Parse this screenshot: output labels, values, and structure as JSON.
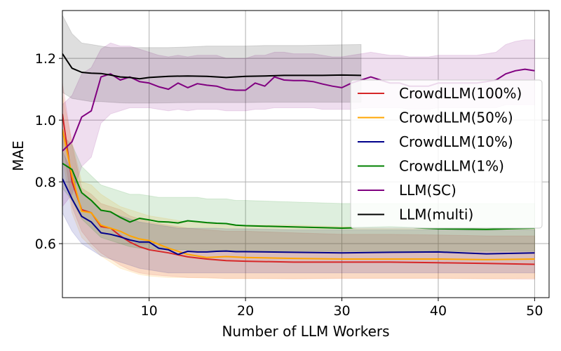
{
  "chart_data": {
    "type": "line",
    "title": "",
    "xlabel": "Number of LLM Workers",
    "ylabel": "MAE",
    "xlim": [
      1,
      51.5
    ],
    "ylim": [
      0.425,
      1.355
    ],
    "xticks": [
      10,
      20,
      30,
      40,
      50
    ],
    "yticks": [
      0.6,
      0.8,
      1.0,
      1.2
    ],
    "xtick_labels": [
      "10",
      "20",
      "30",
      "40",
      "50"
    ],
    "ytick_labels": [
      "0.6",
      "0.8",
      "1.0",
      "1.2"
    ],
    "grid": true,
    "legend_position": "center-right",
    "series": [
      {
        "name": "CrowdLLM(100%)",
        "color": "#d62728",
        "x": [
          1,
          2,
          3,
          4,
          5,
          6,
          7,
          8,
          9,
          10,
          12,
          14,
          16,
          18,
          20,
          25,
          30,
          35,
          40,
          45,
          50
        ],
        "values": [
          1.02,
          0.8,
          0.71,
          0.7,
          0.655,
          0.65,
          0.625,
          0.605,
          0.59,
          0.58,
          0.57,
          0.557,
          0.55,
          0.545,
          0.543,
          0.54,
          0.54,
          0.54,
          0.538,
          0.536,
          0.533
        ],
        "lower": [
          0.94,
          0.72,
          0.64,
          0.6,
          0.57,
          0.55,
          0.53,
          0.515,
          0.505,
          0.5,
          0.495,
          0.49,
          0.49,
          0.487,
          0.487,
          0.486,
          0.487,
          0.487,
          0.487,
          0.486,
          0.485
        ],
        "upper": [
          1.12,
          0.92,
          0.78,
          0.76,
          0.73,
          0.72,
          0.71,
          0.69,
          0.68,
          0.67,
          0.66,
          0.65,
          0.645,
          0.64,
          0.64,
          0.635,
          0.63,
          0.63,
          0.628,
          0.625,
          0.625
        ]
      },
      {
        "name": "CrowdLLM(50%)",
        "color": "#ffa500",
        "x": [
          1,
          2,
          3,
          4,
          5,
          6,
          7,
          8,
          9,
          10,
          12,
          14,
          16,
          18,
          20,
          25,
          30,
          35,
          40,
          45,
          50
        ],
        "values": [
          0.97,
          0.82,
          0.705,
          0.7,
          0.66,
          0.65,
          0.64,
          0.625,
          0.615,
          0.61,
          0.585,
          0.565,
          0.555,
          0.558,
          0.555,
          0.552,
          0.55,
          0.55,
          0.55,
          0.548,
          0.55
        ],
        "lower": [
          0.88,
          0.7,
          0.62,
          0.59,
          0.56,
          0.54,
          0.52,
          0.51,
          0.5,
          0.495,
          0.49,
          0.49,
          0.488,
          0.487,
          0.487,
          0.487,
          0.488,
          0.488,
          0.488,
          0.487,
          0.488
        ],
        "upper": [
          1.08,
          0.93,
          0.8,
          0.79,
          0.76,
          0.74,
          0.72,
          0.71,
          0.7,
          0.69,
          0.68,
          0.67,
          0.665,
          0.66,
          0.66,
          0.66,
          0.655,
          0.65,
          0.65,
          0.648,
          0.648
        ]
      },
      {
        "name": "CrowdLLM(10%)",
        "color": "#00008b",
        "x": [
          1,
          2,
          3,
          4,
          5,
          6,
          7,
          8,
          9,
          10,
          11,
          12,
          13,
          14,
          15,
          16,
          17,
          18,
          19,
          20,
          25,
          30,
          35,
          40,
          45,
          50
        ],
        "values": [
          0.81,
          0.745,
          0.688,
          0.67,
          0.635,
          0.63,
          0.622,
          0.612,
          0.605,
          0.605,
          0.585,
          0.58,
          0.565,
          0.575,
          0.573,
          0.573,
          0.575,
          0.576,
          0.574,
          0.574,
          0.572,
          0.57,
          0.572,
          0.573,
          0.567,
          0.57
        ],
        "lower": [
          0.7,
          0.64,
          0.6,
          0.58,
          0.56,
          0.55,
          0.54,
          0.53,
          0.52,
          0.515,
          0.51,
          0.505,
          0.505,
          0.505,
          0.505,
          0.505,
          0.505,
          0.505,
          0.505,
          0.505,
          0.505,
          0.505,
          0.505,
          0.505,
          0.505,
          0.505
        ],
        "upper": [
          0.9,
          0.83,
          0.76,
          0.74,
          0.71,
          0.7,
          0.69,
          0.68,
          0.67,
          0.665,
          0.66,
          0.655,
          0.65,
          0.65,
          0.65,
          0.65,
          0.65,
          0.648,
          0.648,
          0.648,
          0.645,
          0.645,
          0.645,
          0.645,
          0.642,
          0.645
        ]
      },
      {
        "name": "CrowdLLM(1%)",
        "color": "#008000",
        "x": [
          1,
          2,
          3,
          4,
          5,
          6,
          7,
          8,
          9,
          10,
          11,
          12,
          13,
          14,
          15,
          16,
          17,
          18,
          19,
          20,
          25,
          30,
          35,
          40,
          45,
          50
        ],
        "values": [
          0.86,
          0.84,
          0.765,
          0.74,
          0.708,
          0.703,
          0.685,
          0.67,
          0.682,
          0.677,
          0.671,
          0.67,
          0.667,
          0.674,
          0.671,
          0.668,
          0.666,
          0.665,
          0.66,
          0.658,
          0.654,
          0.65,
          0.654,
          0.648,
          0.646,
          0.65
        ],
        "lower": [
          0.78,
          0.74,
          0.68,
          0.65,
          0.62,
          0.61,
          0.6,
          0.59,
          0.585,
          0.585,
          0.58,
          0.58,
          0.58,
          0.58,
          0.578,
          0.578,
          0.578,
          0.578,
          0.577,
          0.577,
          0.576,
          0.575,
          0.575,
          0.575,
          0.575,
          0.575
        ],
        "upper": [
          0.95,
          0.92,
          0.85,
          0.82,
          0.79,
          0.78,
          0.77,
          0.76,
          0.76,
          0.755,
          0.75,
          0.75,
          0.75,
          0.75,
          0.75,
          0.745,
          0.745,
          0.745,
          0.74,
          0.74,
          0.735,
          0.73,
          0.73,
          0.73,
          0.73,
          0.73
        ]
      },
      {
        "name": "LLM(SC)",
        "color": "#800080",
        "x": [
          1,
          2,
          3,
          4,
          5,
          6,
          7,
          8,
          9,
          10,
          11,
          12,
          13,
          14,
          15,
          16,
          17,
          18,
          19,
          20,
          21,
          22,
          23,
          24,
          25,
          26,
          27,
          28,
          29,
          30,
          31,
          32,
          33,
          34,
          35,
          36,
          37,
          38,
          39,
          40,
          41,
          42,
          43,
          44,
          45,
          46,
          47,
          48,
          49,
          50
        ],
        "values": [
          0.9,
          0.93,
          1.01,
          1.03,
          1.14,
          1.15,
          1.13,
          1.14,
          1.125,
          1.12,
          1.108,
          1.1,
          1.12,
          1.105,
          1.118,
          1.113,
          1.11,
          1.1,
          1.097,
          1.097,
          1.12,
          1.11,
          1.14,
          1.13,
          1.128,
          1.128,
          1.125,
          1.117,
          1.11,
          1.105,
          1.12,
          1.13,
          1.14,
          1.13,
          1.12,
          1.12,
          1.11,
          1.11,
          1.11,
          1.12,
          1.12,
          1.12,
          1.12,
          1.12,
          1.125,
          1.13,
          1.15,
          1.16,
          1.165,
          1.16
        ],
        "lower": [
          0.72,
          0.76,
          0.85,
          0.88,
          0.99,
          1.02,
          1.03,
          1.04,
          1.04,
          1.04,
          1.035,
          1.03,
          1.035,
          1.03,
          1.035,
          1.035,
          1.035,
          1.03,
          1.03,
          1.03,
          1.035,
          1.035,
          1.04,
          1.04,
          1.04,
          1.04,
          1.04,
          1.035,
          1.035,
          1.035,
          1.035,
          1.04,
          1.04,
          1.04,
          1.04,
          1.04,
          1.035,
          1.035,
          1.035,
          1.04,
          1.04,
          1.04,
          1.04,
          1.04,
          1.04,
          1.04,
          1.05,
          1.05,
          1.05,
          1.05
        ],
        "upper": [
          1.05,
          1.08,
          1.15,
          1.17,
          1.23,
          1.25,
          1.24,
          1.24,
          1.23,
          1.22,
          1.21,
          1.205,
          1.21,
          1.205,
          1.21,
          1.21,
          1.21,
          1.2,
          1.2,
          1.2,
          1.21,
          1.21,
          1.22,
          1.22,
          1.215,
          1.215,
          1.215,
          1.21,
          1.205,
          1.205,
          1.21,
          1.215,
          1.22,
          1.215,
          1.21,
          1.21,
          1.205,
          1.205,
          1.205,
          1.21,
          1.21,
          1.21,
          1.21,
          1.21,
          1.215,
          1.22,
          1.245,
          1.255,
          1.26,
          1.26
        ]
      },
      {
        "name": "LLM(multi)",
        "color": "#000000",
        "x": [
          1,
          2,
          3,
          4,
          5,
          6,
          7,
          8,
          9,
          10,
          12,
          14,
          16,
          18,
          20,
          22,
          24,
          26,
          28,
          30,
          32
        ],
        "values": [
          1.215,
          1.168,
          1.155,
          1.152,
          1.151,
          1.146,
          1.14,
          1.138,
          1.134,
          1.138,
          1.142,
          1.143,
          1.142,
          1.138,
          1.142,
          1.143,
          1.145,
          1.145,
          1.145,
          1.146,
          1.145
        ],
        "lower": [
          1.09,
          1.07,
          1.065,
          1.06,
          1.06,
          1.058,
          1.056,
          1.055,
          1.055,
          1.055,
          1.056,
          1.057,
          1.057,
          1.057,
          1.057,
          1.058,
          1.058,
          1.058,
          1.058,
          1.058,
          1.058
        ],
        "upper": [
          1.34,
          1.28,
          1.25,
          1.245,
          1.24,
          1.235,
          1.235,
          1.235,
          1.235,
          1.235,
          1.235,
          1.237,
          1.24,
          1.24,
          1.24,
          1.242,
          1.242,
          1.242,
          1.243,
          1.244,
          1.245
        ]
      }
    ]
  }
}
